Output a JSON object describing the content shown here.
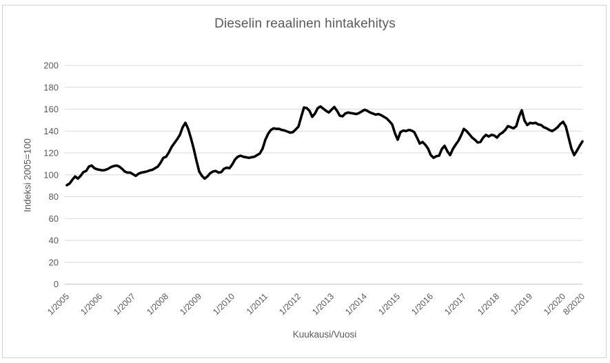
{
  "chart_data": {
    "type": "line",
    "title": "Dieselin reaalinen hintakehitys",
    "xlabel": "Kuukausi/Vuosi",
    "ylabel": "Indeksi 2005=100",
    "ylim": [
      0,
      200
    ],
    "y_ticks": [
      0,
      20,
      40,
      60,
      80,
      100,
      120,
      140,
      160,
      180,
      200
    ],
    "x_ticks": [
      "1/2005",
      "1/2006",
      "1/2007",
      "1/2008",
      "1/2009",
      "1/2010",
      "1/2011",
      "1/2012",
      "1/2013",
      "1/2014",
      "1/2015",
      "1/2016",
      "1/2017",
      "1/2018",
      "1/2019",
      "1/2020",
      "8/2020"
    ],
    "x_monthly_from": "1/2005",
    "x_monthly_to": "8/2020",
    "grid": "horizontal",
    "legend_position": "none",
    "line_color": "#000000",
    "values": [
      90.5,
      92,
      95.5,
      98.5,
      96.5,
      99,
      102.5,
      103.5,
      107.5,
      108.5,
      106,
      105,
      104.5,
      104,
      104.5,
      105.5,
      107,
      108,
      108.5,
      107.5,
      105.5,
      103,
      102,
      102,
      100.5,
      99,
      101,
      102,
      102.5,
      103,
      104,
      104.5,
      106,
      107.5,
      111,
      115.5,
      116.5,
      120.5,
      125.5,
      129,
      132.5,
      136.5,
      143.5,
      147.5,
      142,
      133.5,
      124,
      113,
      103,
      99,
      96.5,
      98.5,
      101.5,
      103,
      103.5,
      102,
      102.5,
      105.5,
      106.5,
      106,
      109.5,
      114,
      116.5,
      117.5,
      116.5,
      116,
      115.5,
      116,
      116.5,
      118,
      119.5,
      124,
      132,
      137.5,
      141,
      142.5,
      142,
      142,
      141,
      140.5,
      139.5,
      138.5,
      139,
      141.5,
      144,
      153,
      161.5,
      161,
      158.5,
      153,
      156,
      161,
      162.5,
      160.5,
      158.5,
      157,
      159.5,
      162,
      158.5,
      154,
      153.5,
      156,
      157,
      156.5,
      156,
      155.5,
      156.5,
      158,
      159.5,
      158.5,
      157,
      156,
      155,
      155.5,
      154.5,
      153,
      151.5,
      149,
      146,
      138,
      132,
      139,
      140.5,
      140,
      141,
      140.5,
      139,
      134,
      128.5,
      130,
      127.5,
      124,
      118,
      115.5,
      117,
      117.5,
      123.5,
      126.5,
      121.5,
      118,
      123.5,
      127.5,
      131,
      136,
      142,
      140,
      137,
      134,
      132,
      129.5,
      130,
      134,
      136.5,
      135,
      136.5,
      136,
      134,
      137,
      138.5,
      141,
      144.5,
      143.5,
      142.5,
      144.5,
      153,
      159,
      149.5,
      145.5,
      147.5,
      147,
      147.5,
      146,
      145.5,
      143.5,
      142.5,
      141,
      140,
      141.5,
      143.5,
      146.5,
      148.5,
      144,
      134,
      124,
      118,
      122,
      126.5,
      130.5
    ]
  },
  "styles": {
    "text_color": "#595959",
    "grid_color": "#d9d9d9",
    "axis_line_color": "#c6c6c6",
    "frame_border_color": "#d0cece",
    "background": "#ffffff"
  }
}
